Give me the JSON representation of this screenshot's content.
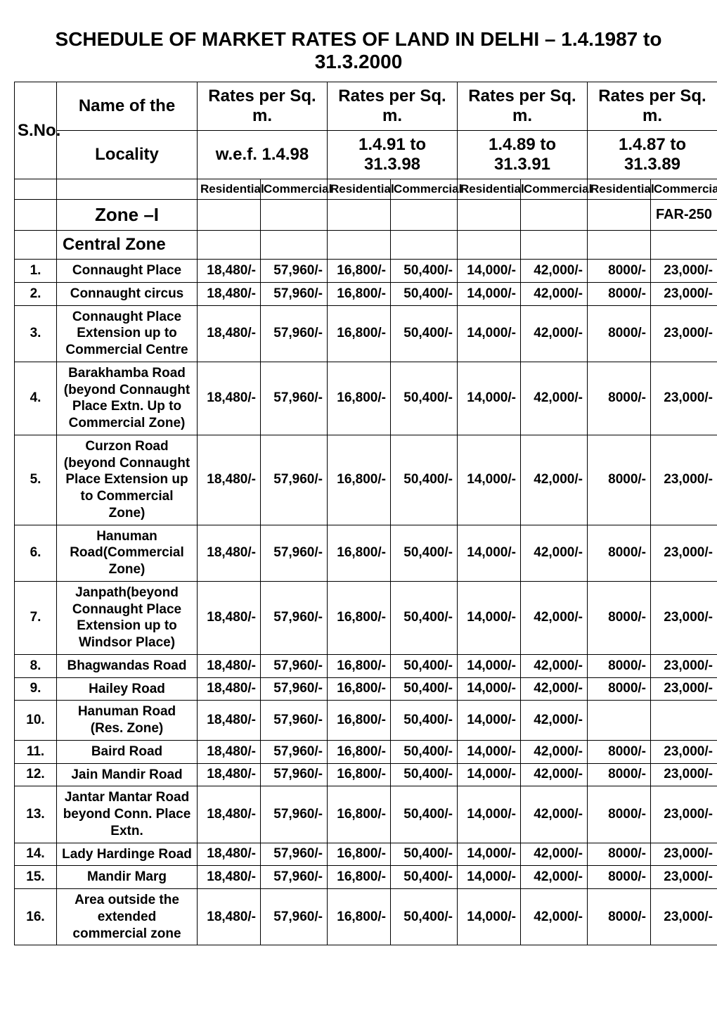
{
  "title": "SCHEDULE OF MARKET RATES OF LAND IN DELHI – 1.4.1987 to 31.3.2000",
  "columns": {
    "sno": "S.No.",
    "name_top": "Name of the",
    "name_bottom": "Locality",
    "group1_top": "Rates per Sq. m.",
    "group1_bottom": "w.e.f. 1.4.98",
    "group2_top": "Rates per Sq. m.",
    "group2_bottom": "1.4.91 to 31.3.98",
    "group3_top": "Rates per Sq. m.",
    "group3_bottom": "1.4.89 to 31.3.91",
    "group4_top": "Rates per Sq. m.",
    "group4_bottom": "1.4.87 to 31.3.89",
    "residential": "Residential",
    "commercial": "Commercial"
  },
  "zone_label": "Zone –I",
  "far_label": "FAR-250",
  "section_label": "Central Zone",
  "rows": [
    {
      "sno": "1.",
      "name": "Connaught Place",
      "v": [
        "18,480/-",
        "57,960/-",
        "16,800/-",
        "50,400/-",
        "14,000/-",
        "42,000/-",
        "8000/-",
        "23,000/-"
      ]
    },
    {
      "sno": "2.",
      "name": "Connaught circus",
      "v": [
        "18,480/-",
        "57,960/-",
        "16,800/-",
        "50,400/-",
        "14,000/-",
        "42,000/-",
        "8000/-",
        "23,000/-"
      ]
    },
    {
      "sno": "3.",
      "name": "Connaught Place Extension up to Commercial Centre",
      "v": [
        "18,480/-",
        "57,960/-",
        "16,800/-",
        "50,400/-",
        "14,000/-",
        "42,000/-",
        "8000/-",
        "23,000/-"
      ]
    },
    {
      "sno": "4.",
      "name": "Barakhamba Road (beyond Connaught Place Extn. Up to Commercial Zone)",
      "v": [
        "18,480/-",
        "57,960/-",
        "16,800/-",
        "50,400/-",
        "14,000/-",
        "42,000/-",
        "8000/-",
        "23,000/-"
      ]
    },
    {
      "sno": "5.",
      "name": "Curzon Road (beyond Connaught Place Extension up to Commercial Zone)",
      "v": [
        "18,480/-",
        "57,960/-",
        "16,800/-",
        "50,400/-",
        "14,000/-",
        "42,000/-",
        "8000/-",
        "23,000/-"
      ]
    },
    {
      "sno": "6.",
      "name": "Hanuman Road(Commercial Zone)",
      "v": [
        "18,480/-",
        "57,960/-",
        "16,800/-",
        "50,400/-",
        "14,000/-",
        "42,000/-",
        "8000/-",
        "23,000/-"
      ]
    },
    {
      "sno": "7.",
      "name": "Janpath(beyond Connaught Place Extension up to Windsor Place)",
      "v": [
        "18,480/-",
        "57,960/-",
        "16,800/-",
        "50,400/-",
        "14,000/-",
        "42,000/-",
        "8000/-",
        "23,000/-"
      ]
    },
    {
      "sno": "8.",
      "name": "Bhagwandas Road",
      "v": [
        "18,480/-",
        "57,960/-",
        "16,800/-",
        "50,400/-",
        "14,000/-",
        "42,000/-",
        "8000/-",
        "23,000/-"
      ]
    },
    {
      "sno": "9.",
      "name": "Hailey Road",
      "v": [
        "18,480/-",
        "57,960/-",
        "16,800/-",
        "50,400/-",
        "14,000/-",
        "42,000/-",
        "8000/-",
        "23,000/-"
      ]
    },
    {
      "sno": "10.",
      "name": "Hanuman Road (Res. Zone)",
      "v": [
        "18,480/-",
        "57,960/-",
        "16,800/-",
        "50,400/-",
        "14,000/-",
        "42,000/-",
        "",
        ""
      ]
    },
    {
      "sno": "11.",
      "name": "Baird Road",
      "v": [
        "18,480/-",
        "57,960/-",
        "16,800/-",
        "50,400/-",
        "14,000/-",
        "42,000/-",
        "8000/-",
        "23,000/-"
      ]
    },
    {
      "sno": "12.",
      "name": "Jain Mandir Road",
      "v": [
        "18,480/-",
        "57,960/-",
        "16,800/-",
        "50,400/-",
        "14,000/-",
        "42,000/-",
        "8000/-",
        "23,000/-"
      ]
    },
    {
      "sno": "13.",
      "name": "Jantar Mantar Road beyond Conn. Place Extn.",
      "v": [
        "18,480/-",
        "57,960/-",
        "16,800/-",
        "50,400/-",
        "14,000/-",
        "42,000/-",
        "8000/-",
        "23,000/-"
      ]
    },
    {
      "sno": "14.",
      "name": "Lady Hardinge Road",
      "v": [
        "18,480/-",
        "57,960/-",
        "16,800/-",
        "50,400/-",
        "14,000/-",
        "42,000/-",
        "8000/-",
        "23,000/-"
      ]
    },
    {
      "sno": "15.",
      "name": "Mandir Marg",
      "v": [
        "18,480/-",
        "57,960/-",
        "16,800/-",
        "50,400/-",
        "14,000/-",
        "42,000/-",
        "8000/-",
        "23,000/-"
      ]
    },
    {
      "sno": "16.",
      "name": "Area outside the extended commercial zone",
      "v": [
        "18,480/-",
        "57,960/-",
        "16,800/-",
        "50,400/-",
        "14,000/-",
        "42,000/-",
        "8000/-",
        "23,000/-"
      ]
    }
  ],
  "styling": {
    "border_color": "#000000",
    "background_color": "#ffffff",
    "text_color": "#000000",
    "title_fontsize": 28,
    "header_fontsize": 24,
    "subheader_fontsize": 17,
    "cell_fontsize": 19,
    "font_family": "Arial Narrow"
  }
}
